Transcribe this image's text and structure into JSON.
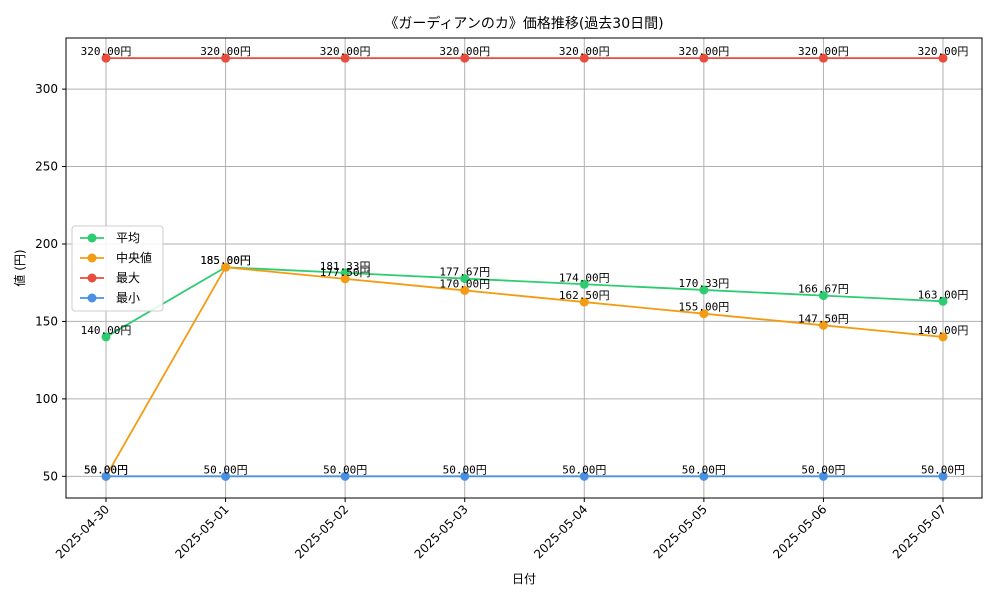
{
  "chart_data": {
    "type": "line",
    "title": "《ガーディアンのカ》価格推移(過去30日間)",
    "xlabel": "日付",
    "ylabel": "値 (円)",
    "categories": [
      "2025-04-30",
      "2025-05-01",
      "2025-05-02",
      "2025-05-03",
      "2025-05-04",
      "2025-05-05",
      "2025-05-06",
      "2025-05-07"
    ],
    "ylim": [
      36,
      333
    ],
    "yticks": [
      50,
      100,
      150,
      200,
      250,
      300
    ],
    "grid": true,
    "legend_position": "center-left",
    "series": [
      {
        "name": "平均",
        "color": "#2ecc71",
        "values": [
          140.0,
          185.0,
          181.33,
          177.67,
          174.0,
          170.33,
          166.67,
          163.0
        ],
        "labels": [
          "140.00円",
          "185.00円",
          "181.33円",
          "177.67円",
          "174.00円",
          "170.33円",
          "166.67円",
          "163.00円"
        ]
      },
      {
        "name": "中央値",
        "color": "#f39c12",
        "values": [
          50.0,
          185.0,
          177.5,
          170.0,
          162.5,
          155.0,
          147.5,
          140.0
        ],
        "labels": [
          "50.00円",
          "185.00円",
          "177.50円",
          "170.00円",
          "162.50円",
          "155.00円",
          "147.50円",
          "140.00円"
        ]
      },
      {
        "name": "最大",
        "color": "#e74c3c",
        "values": [
          320,
          320,
          320,
          320,
          320,
          320,
          320,
          320
        ],
        "labels": [
          "320.00円",
          "320.00円",
          "320.00円",
          "320.00円",
          "320.00円",
          "320.00円",
          "320.00円",
          "320.00円"
        ]
      },
      {
        "name": "最小",
        "color": "#4a90e2",
        "values": [
          50,
          50,
          50,
          50,
          50,
          50,
          50,
          50
        ],
        "labels": [
          "50.00円",
          "50.00円",
          "50.00円",
          "50.00円",
          "50.00円",
          "50.00円",
          "50.00円",
          "50.00円"
        ]
      }
    ]
  }
}
